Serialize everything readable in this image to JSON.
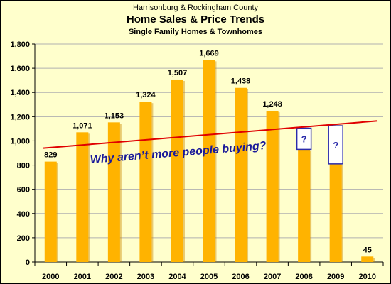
{
  "header": {
    "supertitle": "Harrisonburg & Rockingham County",
    "title": "Home Sales & Price Trends",
    "subtitle": "Single Family Homes & Townhomes"
  },
  "chart_data": {
    "type": "bar",
    "title": "Home Sales & Price Trends",
    "subtitle": "Single Family Homes & Townhomes",
    "supertitle": "Harrisonburg & Rockingham County",
    "xlabel": "",
    "ylabel": "",
    "categories": [
      "2000",
      "2001",
      "2002",
      "2003",
      "2004",
      "2005",
      "2006",
      "2007",
      "2008",
      "2009",
      "2010"
    ],
    "values": [
      829,
      1071,
      1153,
      1324,
      1507,
      1669,
      1438,
      1248,
      930,
      810,
      45
    ],
    "data_labels": [
      "829",
      "1,071",
      "1,153",
      "1,324",
      "1,507",
      "1,669",
      "1,438",
      "1,248",
      "",
      "",
      "45"
    ],
    "ylim": [
      0,
      1800
    ],
    "yticks": [
      0,
      200,
      400,
      600,
      800,
      1000,
      1200,
      1400,
      1600,
      1800
    ],
    "ytick_labels": [
      "0",
      "200",
      "400",
      "600",
      "800",
      "1,000",
      "1,200",
      "1,400",
      "1,600",
      "1,800"
    ],
    "grid": true,
    "legend": "none",
    "trend_line": {
      "start": 940,
      "end": 1165,
      "color": "#E00000"
    },
    "unknown_markers": [
      {
        "category": "2008",
        "from": 930,
        "to": 1105,
        "label": "?"
      },
      {
        "category": "2009",
        "from": 810,
        "to": 1125,
        "label": "?"
      }
    ],
    "annotation": "Why aren’t more people buying?",
    "colors": {
      "bar": "#FFB300",
      "bar_shadow": "#CC8A00",
      "plot_background": "#FFFFCC",
      "gridline": "#B0B0B0",
      "marker_outline": "#2B2BAA",
      "annotation": "#1A1A99"
    }
  }
}
